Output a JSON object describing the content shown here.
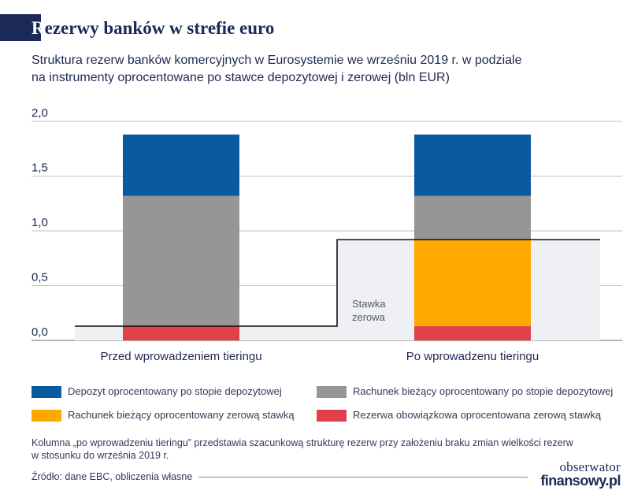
{
  "header": {
    "title_first_letter": "R",
    "title_rest": "ezerwy banków w strefie euro",
    "subtitle_line1": "Struktura rezerw banków komercyjnych w Eurosystemie we wrześniu 2019 r. w podziale",
    "subtitle_line2": "na instrumenty oprocentowane po stawce depozytowej i zerowej (bln EUR)"
  },
  "chart_data": {
    "type": "bar",
    "stacked": true,
    "categories": [
      "Przed wprowadzeniem tieringu",
      "Po wprowadzenu tieringu"
    ],
    "ylim": [
      0,
      2.0
    ],
    "yticks": [
      "0,0",
      "0,5",
      "1,0",
      "1,5",
      "2,0"
    ],
    "ytick_values": [
      0,
      0.5,
      1.0,
      1.5,
      2.0
    ],
    "series": [
      {
        "name": "Rezerwa obowiązkowa oprocentowana zerową stawką",
        "color": "#e0404a",
        "values": [
          0.13,
          0.13
        ]
      },
      {
        "name": "Rachunek bieżący oprocentowany zerową stawką",
        "color": "#ffa800",
        "values": [
          0.0,
          0.79
        ]
      },
      {
        "name": "Rachunek bieżący oprocentowany po stopie depozytowej",
        "color": "#969696",
        "values": [
          1.19,
          0.4
        ]
      },
      {
        "name": "Depozyt oprocentowany po stopie depozytowej",
        "color": "#0a5aa0",
        "values": [
          0.56,
          0.56
        ]
      }
    ],
    "zero_rate_threshold": [
      0.13,
      0.92
    ],
    "annotation_line1": "Stawka",
    "annotation_line2": "zerowa"
  },
  "legend": [
    {
      "label": "Depozyt oprocentowany po stopie depozytowej",
      "color": "#0a5aa0"
    },
    {
      "label": "Rachunek bieżący oprocentowany po stopie depozytowej",
      "color": "#969696"
    },
    {
      "label": "Rachunek bieżący oprocentowany zerową stawką",
      "color": "#ffa800"
    },
    {
      "label": "Rezerwa obowiązkowa oprocentowana zerową stawką",
      "color": "#e0404a"
    }
  ],
  "footer": {
    "note_line1": "Kolumna „po wprowadzeniu tieringu” przedstawia szacunkową strukturę rezerw przy założeniu braku zmian wielkości rezerw",
    "note_line2": "w stosunku do września 2019 r.",
    "source": "Źródło: dane EBC, obliczenia własne",
    "logo_line1": "obserwator",
    "logo_line2": "finansowy.pl"
  }
}
